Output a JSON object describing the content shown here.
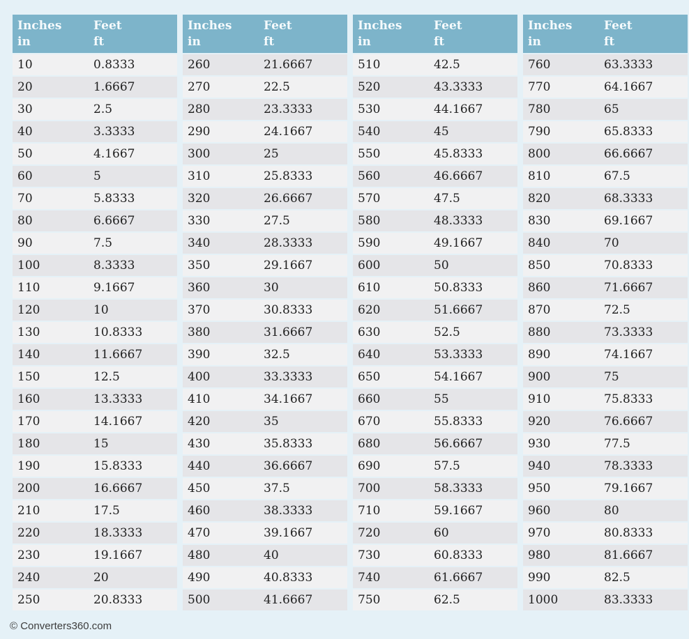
{
  "header": {
    "col1_title": "Inches",
    "col1_unit": "in",
    "col2_title": "Feet",
    "col2_unit": "ft"
  },
  "footer": {
    "copyright": "© Converters360.com"
  },
  "colors": {
    "page_bg": "#e5f1f7",
    "header_bg": "#7db4ca",
    "header_text": "#f5fafc",
    "row_light": "#f1f1f2",
    "row_dark": "#e5e5e8",
    "cell_text": "#1f1f1f",
    "footer_text": "#3d3d3d"
  },
  "columns": [
    "Inches in",
    "Feet ft"
  ],
  "tables": [
    {
      "rows": [
        [
          "10",
          "0.8333"
        ],
        [
          "20",
          "1.6667"
        ],
        [
          "30",
          "2.5"
        ],
        [
          "40",
          "3.3333"
        ],
        [
          "50",
          "4.1667"
        ],
        [
          "60",
          "5"
        ],
        [
          "70",
          "5.8333"
        ],
        [
          "80",
          "6.6667"
        ],
        [
          "90",
          "7.5"
        ],
        [
          "100",
          "8.3333"
        ],
        [
          "110",
          "9.1667"
        ],
        [
          "120",
          "10"
        ],
        [
          "130",
          "10.8333"
        ],
        [
          "140",
          "11.6667"
        ],
        [
          "150",
          "12.5"
        ],
        [
          "160",
          "13.3333"
        ],
        [
          "170",
          "14.1667"
        ],
        [
          "180",
          "15"
        ],
        [
          "190",
          "15.8333"
        ],
        [
          "200",
          "16.6667"
        ],
        [
          "210",
          "17.5"
        ],
        [
          "220",
          "18.3333"
        ],
        [
          "230",
          "19.1667"
        ],
        [
          "240",
          "20"
        ],
        [
          "250",
          "20.8333"
        ]
      ]
    },
    {
      "rows": [
        [
          "260",
          "21.6667"
        ],
        [
          "270",
          "22.5"
        ],
        [
          "280",
          "23.3333"
        ],
        [
          "290",
          "24.1667"
        ],
        [
          "300",
          "25"
        ],
        [
          "310",
          "25.8333"
        ],
        [
          "320",
          "26.6667"
        ],
        [
          "330",
          "27.5"
        ],
        [
          "340",
          "28.3333"
        ],
        [
          "350",
          "29.1667"
        ],
        [
          "360",
          "30"
        ],
        [
          "370",
          "30.8333"
        ],
        [
          "380",
          "31.6667"
        ],
        [
          "390",
          "32.5"
        ],
        [
          "400",
          "33.3333"
        ],
        [
          "410",
          "34.1667"
        ],
        [
          "420",
          "35"
        ],
        [
          "430",
          "35.8333"
        ],
        [
          "440",
          "36.6667"
        ],
        [
          "450",
          "37.5"
        ],
        [
          "460",
          "38.3333"
        ],
        [
          "470",
          "39.1667"
        ],
        [
          "480",
          "40"
        ],
        [
          "490",
          "40.8333"
        ],
        [
          "500",
          "41.6667"
        ]
      ]
    },
    {
      "rows": [
        [
          "510",
          "42.5"
        ],
        [
          "520",
          "43.3333"
        ],
        [
          "530",
          "44.1667"
        ],
        [
          "540",
          "45"
        ],
        [
          "550",
          "45.8333"
        ],
        [
          "560",
          "46.6667"
        ],
        [
          "570",
          "47.5"
        ],
        [
          "580",
          "48.3333"
        ],
        [
          "590",
          "49.1667"
        ],
        [
          "600",
          "50"
        ],
        [
          "610",
          "50.8333"
        ],
        [
          "620",
          "51.6667"
        ],
        [
          "630",
          "52.5"
        ],
        [
          "640",
          "53.3333"
        ],
        [
          "650",
          "54.1667"
        ],
        [
          "660",
          "55"
        ],
        [
          "670",
          "55.8333"
        ],
        [
          "680",
          "56.6667"
        ],
        [
          "690",
          "57.5"
        ],
        [
          "700",
          "58.3333"
        ],
        [
          "710",
          "59.1667"
        ],
        [
          "720",
          "60"
        ],
        [
          "730",
          "60.8333"
        ],
        [
          "740",
          "61.6667"
        ],
        [
          "750",
          "62.5"
        ]
      ]
    },
    {
      "rows": [
        [
          "760",
          "63.3333"
        ],
        [
          "770",
          "64.1667"
        ],
        [
          "780",
          "65"
        ],
        [
          "790",
          "65.8333"
        ],
        [
          "800",
          "66.6667"
        ],
        [
          "810",
          "67.5"
        ],
        [
          "820",
          "68.3333"
        ],
        [
          "830",
          "69.1667"
        ],
        [
          "840",
          "70"
        ],
        [
          "850",
          "70.8333"
        ],
        [
          "860",
          "71.6667"
        ],
        [
          "870",
          "72.5"
        ],
        [
          "880",
          "73.3333"
        ],
        [
          "890",
          "74.1667"
        ],
        [
          "900",
          "75"
        ],
        [
          "910",
          "75.8333"
        ],
        [
          "920",
          "76.6667"
        ],
        [
          "930",
          "77.5"
        ],
        [
          "940",
          "78.3333"
        ],
        [
          "950",
          "79.1667"
        ],
        [
          "960",
          "80"
        ],
        [
          "970",
          "80.8333"
        ],
        [
          "980",
          "81.6667"
        ],
        [
          "990",
          "82.5"
        ],
        [
          "1000",
          "83.3333"
        ]
      ]
    }
  ]
}
